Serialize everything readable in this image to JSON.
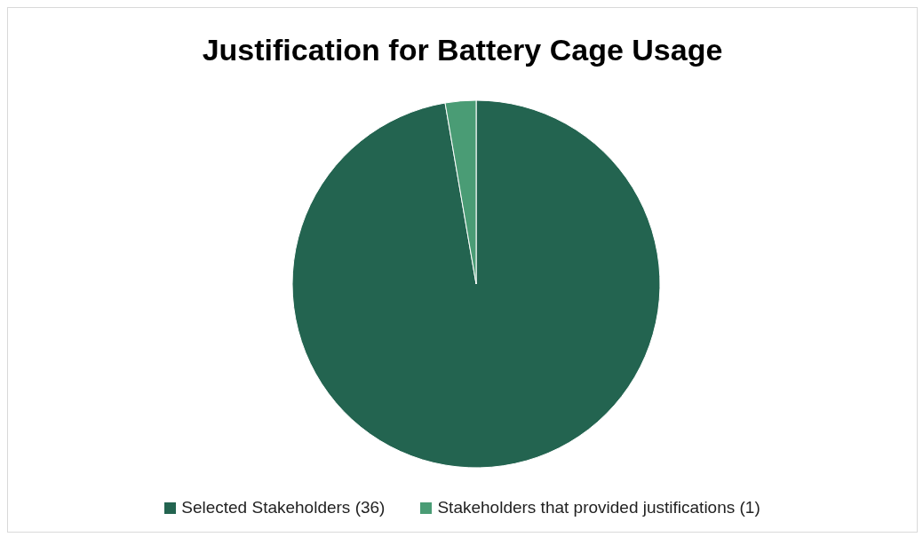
{
  "chart_data": {
    "type": "pie",
    "title": "Justification for Battery Cage Usage",
    "categories": [
      "Selected Stakeholders (36)",
      "Stakeholders that provided justifications (1)"
    ],
    "values": [
      36,
      1
    ],
    "colors": [
      "#236450",
      "#4a9c75"
    ],
    "legend": "bottom"
  }
}
